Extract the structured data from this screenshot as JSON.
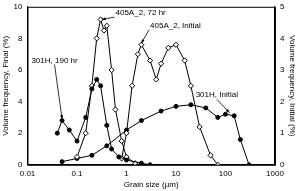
{
  "chart_data": {
    "type": "line",
    "x_label": "Grain size (µm)",
    "y_label": "Volume frequency, Final (%)",
    "y2_label": "Volume frequency, Initial (%)",
    "log": "x",
    "grid": false,
    "xlim": [
      0.01,
      1000
    ],
    "xticks": [
      0.01,
      0.1,
      1,
      10,
      100,
      1000
    ],
    "ylim": [
      0,
      10
    ],
    "yticks": [
      0,
      2,
      4,
      6,
      8,
      10
    ],
    "y2lim": [
      0,
      5
    ],
    "y2ticks": [
      0,
      1,
      2,
      3,
      4,
      5
    ],
    "series": [
      {
        "name": "301H, 190 hr",
        "color": "#000000",
        "marker": "circle",
        "axis": "y",
        "x": [
          0.04,
          0.05,
          0.07,
          0.1,
          0.15,
          0.2,
          0.25,
          0.3,
          0.4,
          0.5,
          0.7,
          1,
          2,
          3
        ],
        "values": [
          2.0,
          2.8,
          2.2,
          1.5,
          3.0,
          4.8,
          5.4,
          5.0,
          2.5,
          1.0,
          0.5,
          0.3,
          0.1,
          0
        ]
      },
      {
        "name": "405A_2, 72 hr",
        "color": "#000000",
        "marker": "open_diamond",
        "axis": "y",
        "x": [
          0.1,
          0.15,
          0.2,
          0.25,
          0.3,
          0.35,
          0.4,
          0.5,
          0.6,
          0.8,
          1,
          1.5
        ],
        "values": [
          0.5,
          2.0,
          5.0,
          8.0,
          9.2,
          8.5,
          8.8,
          6.0,
          3.5,
          1.5,
          0.5,
          0.1
        ]
      },
      {
        "name": "405A_2, Initial",
        "color": "#000000",
        "marker": "open_diamond",
        "axis": "y2",
        "x": [
          0.8,
          1,
          1.3,
          1.7,
          2,
          3,
          4,
          5,
          7,
          10,
          15,
          20,
          30,
          50,
          70
        ],
        "values": [
          0.2,
          1.0,
          2.5,
          3.5,
          3.8,
          3.3,
          2.7,
          3.2,
          3.7,
          3.8,
          3.3,
          2.5,
          1.2,
          0.3,
          0
        ]
      },
      {
        "name": "301H, Initial",
        "color": "#000000",
        "marker": "circle",
        "axis": "y2",
        "x": [
          0.05,
          0.1,
          0.2,
          0.4,
          1,
          2,
          5,
          10,
          20,
          40,
          70,
          100,
          150,
          200,
          300
        ],
        "values": [
          0.1,
          0.2,
          0.3,
          0.6,
          1.1,
          1.4,
          1.7,
          1.85,
          1.9,
          1.8,
          1.5,
          1.6,
          1.55,
          0.8,
          0
        ]
      }
    ]
  }
}
